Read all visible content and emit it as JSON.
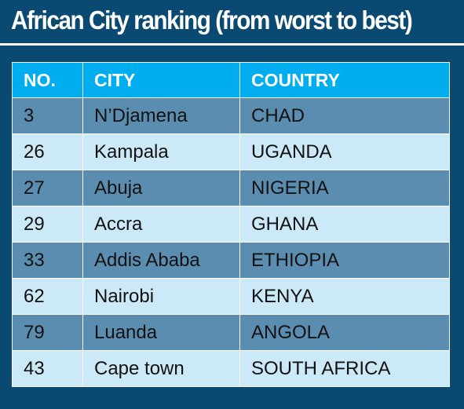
{
  "title": "African City ranking (from worst to best)",
  "table": {
    "headers": {
      "no": "NO.",
      "city": "CITY",
      "country": "COUNTRY"
    },
    "rows": [
      {
        "no": "3",
        "city": "N’Djamena",
        "country": "CHAD"
      },
      {
        "no": "26",
        "city": "Kampala",
        "country": "UGANDA"
      },
      {
        "no": "27",
        "city": "Abuja",
        "country": "NIGERIA"
      },
      {
        "no": "29",
        "city": "Accra",
        "country": "GHANA"
      },
      {
        "no": "33",
        "city": "Addis Ababa",
        "country": "ETHIOPIA"
      },
      {
        "no": "62",
        "city": "Nairobi",
        "country": "KENYA"
      },
      {
        "no": "79",
        "city": "Luanda",
        "country": "ANGOLA"
      },
      {
        "no": "43",
        "city": "Cape town",
        "country": "SOUTH AFRICA"
      }
    ]
  },
  "colors": {
    "background": "#0a4a72",
    "header": "#00aeef",
    "row_dark": "#5b8db0",
    "row_light": "#cce9f7"
  }
}
